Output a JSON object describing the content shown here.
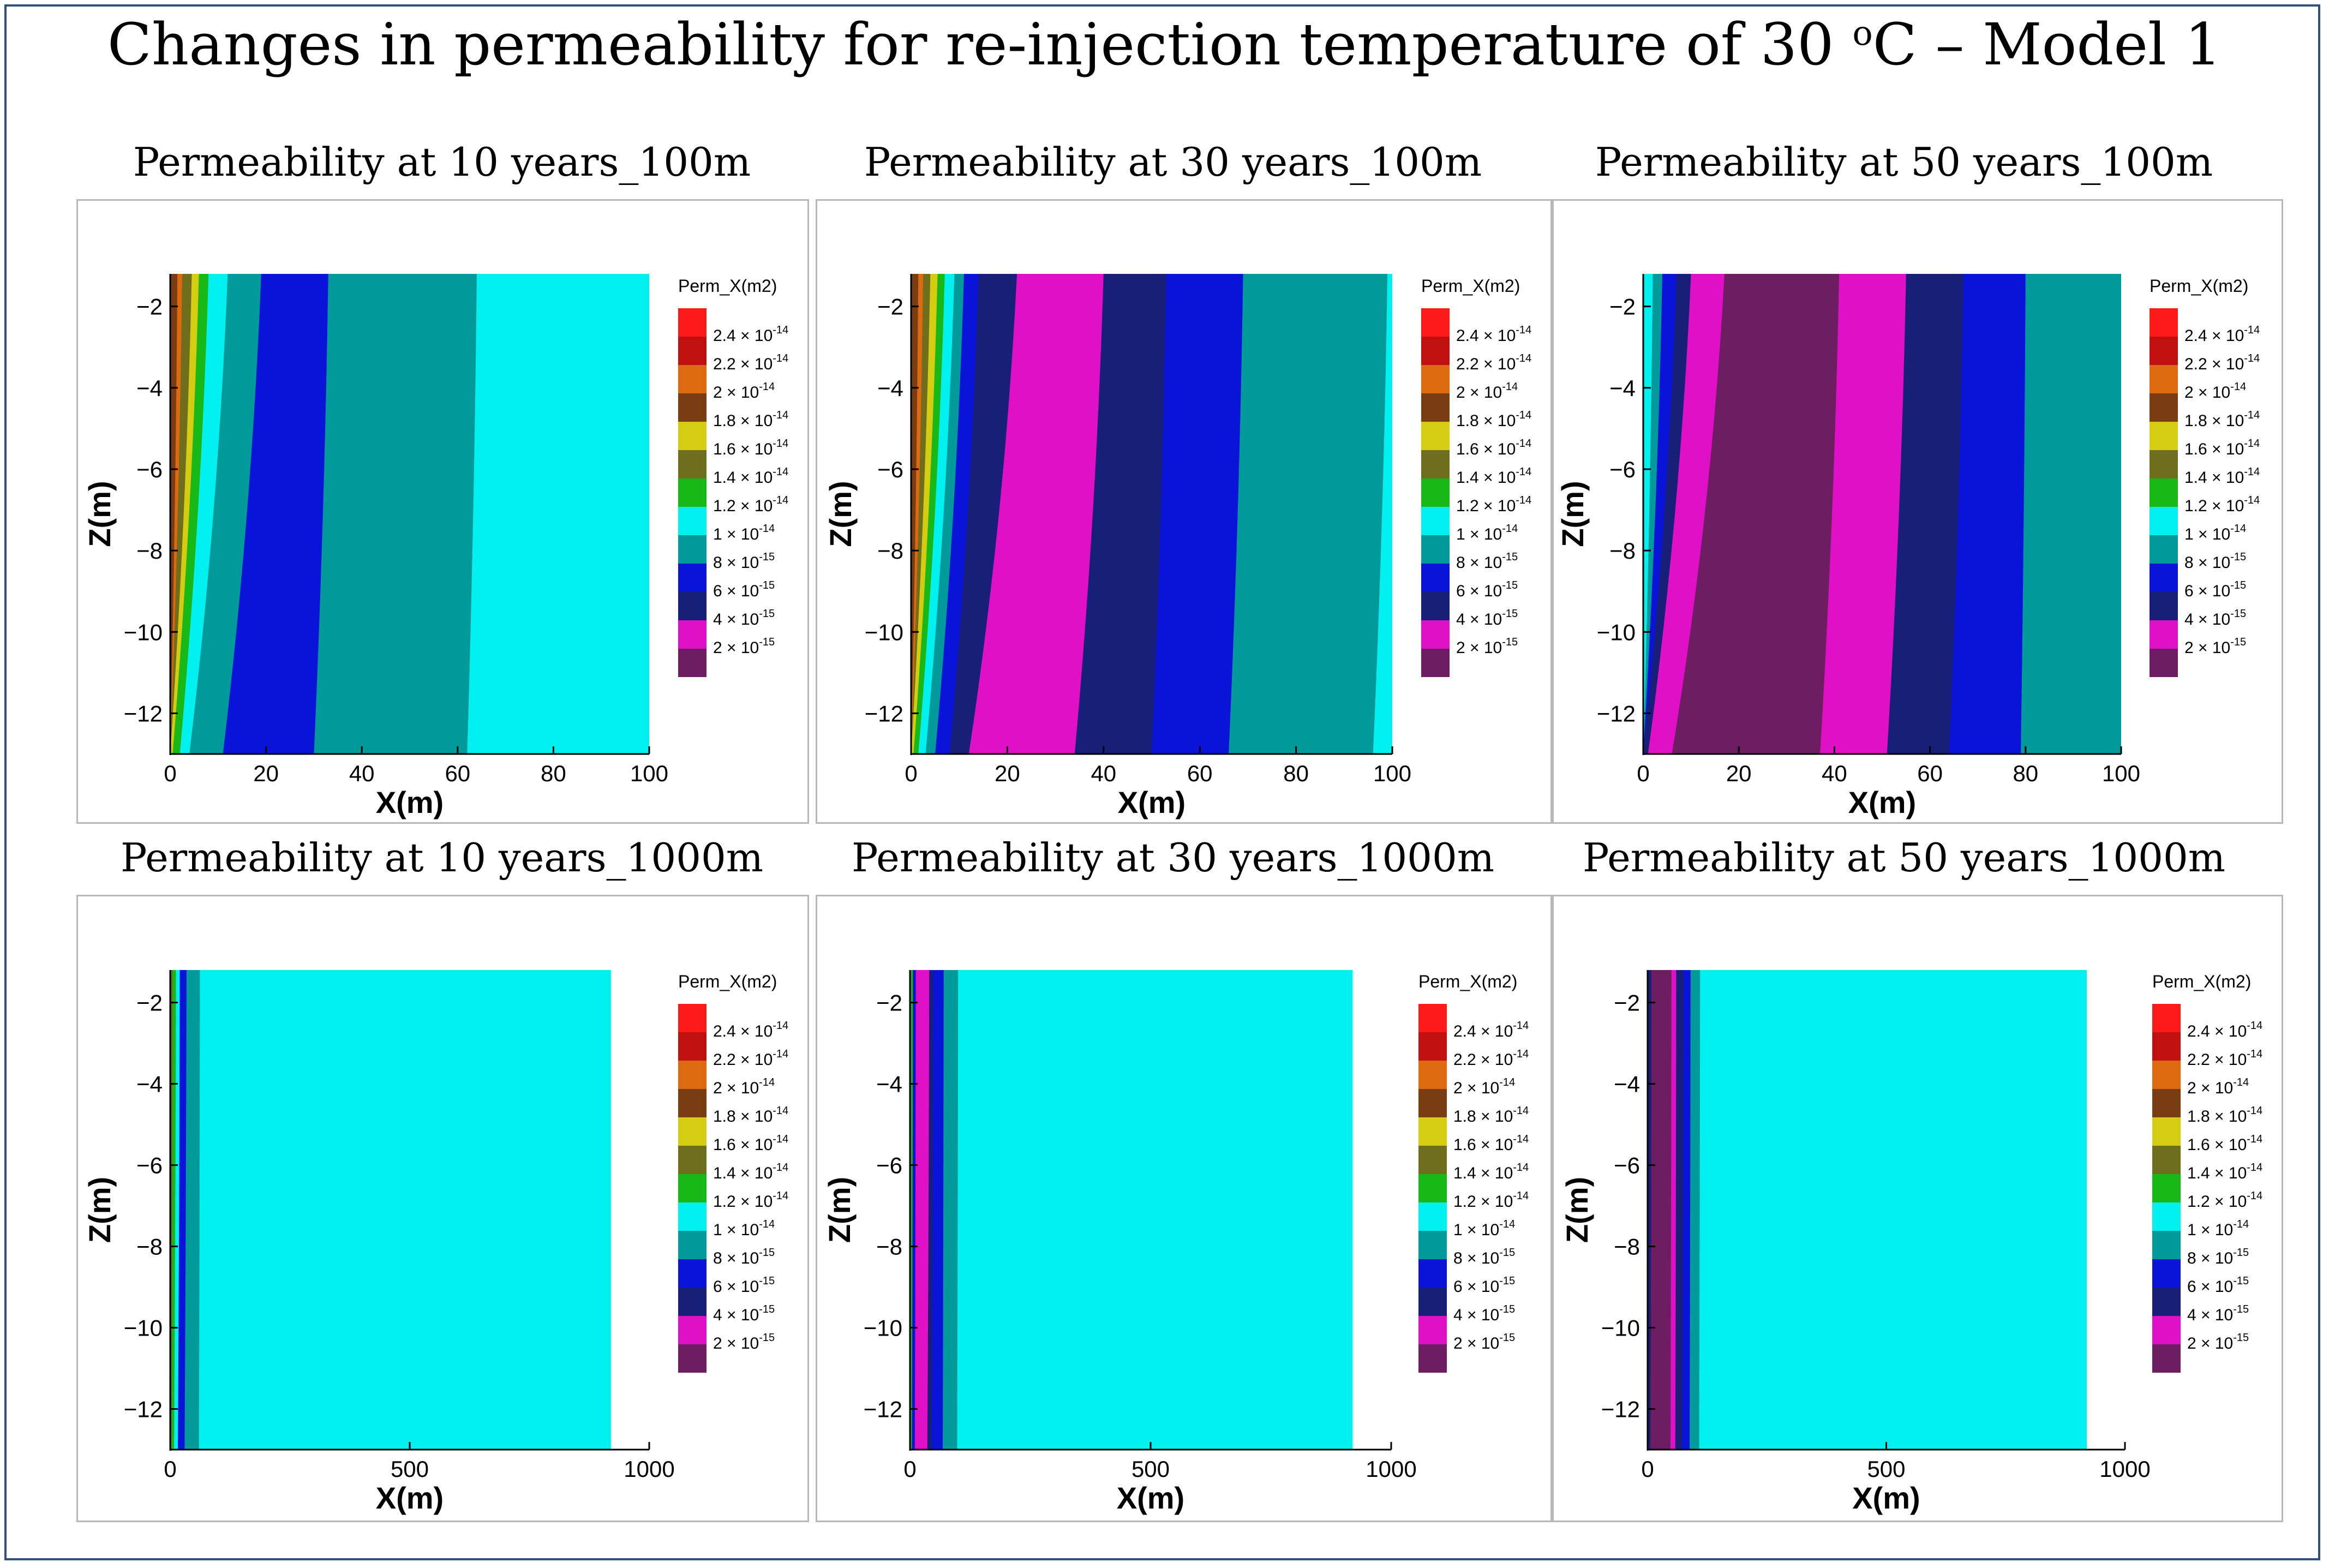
{
  "title": "Changes in permeability for re-injection temperature of 30",
  "title_degree": "o",
  "title_tail": "C – Model 1",
  "legend": {
    "title": "Perm_X(m2)",
    "levels": [
      {
        "label": "2.4 × 10",
        "exp": "-14",
        "color": "#ff1a1a"
      },
      {
        "label": "2.2 × 10",
        "exp": "-14",
        "color": "#c01010"
      },
      {
        "label": "2 × 10",
        "exp": "-14",
        "color": "#dd6a10"
      },
      {
        "label": "1.8 × 10",
        "exp": "-14",
        "color": "#7a3d12"
      },
      {
        "label": "1.6 × 10",
        "exp": "-14",
        "color": "#d4cc10"
      },
      {
        "label": "1.4 × 10",
        "exp": "-14",
        "color": "#6e6e1c"
      },
      {
        "label": "1.2 × 10",
        "exp": "-14",
        "color": "#18b818"
      },
      {
        "label": "1 × 10",
        "exp": "-14",
        "color": "#00f0f0"
      },
      {
        "label": "8 × 10",
        "exp": "-15",
        "color": "#009a9a"
      },
      {
        "label": "6 × 10",
        "exp": "-15",
        "color": "#0a14d8"
      },
      {
        "label": "4 × 10",
        "exp": "-15",
        "color": "#181f78"
      },
      {
        "label": "2 × 10",
        "exp": "-15",
        "color": "#e010c8"
      },
      {
        "label": "",
        "exp": "",
        "color": "#6e1e60"
      }
    ]
  },
  "chart_data": [
    {
      "type": "heatmap",
      "title": "Permeability  at 10 years_100m",
      "xlabel": "X(m)",
      "ylabel": "Z(m)",
      "xlim": [
        0,
        100
      ],
      "ylim": [
        -13,
        -1.2
      ],
      "xticks": [
        "0",
        "20",
        "40",
        "60",
        "80",
        "100"
      ],
      "yticks": [
        "−2",
        "−4",
        "−6",
        "−8",
        "−10",
        "−12"
      ],
      "bands": [
        {
          "color": "#7a3d12",
          "x_top": 1.5,
          "x_bottom": 0
        },
        {
          "color": "#dd6a10",
          "x_top": 2.5,
          "x_bottom": 0
        },
        {
          "color": "#6e6e1c",
          "x_top": 4.5,
          "x_bottom": 0
        },
        {
          "color": "#d4cc10",
          "x_top": 6,
          "x_bottom": 0.5
        },
        {
          "color": "#18b818",
          "x_top": 8,
          "x_bottom": 2
        },
        {
          "color": "#00f0f0",
          "x_top": 12,
          "x_bottom": 4
        },
        {
          "color": "#009a9a",
          "x_top": 19,
          "x_bottom": 11
        },
        {
          "color": "#0a14d8",
          "x_top": 33,
          "x_bottom": 30
        },
        {
          "color": "#009a9a",
          "x_top": 64,
          "x_bottom": 62
        },
        {
          "color": "#00f0f0",
          "x_top": 100,
          "x_bottom": 100
        }
      ]
    },
    {
      "type": "heatmap",
      "title": "Permeability  at 30 years_100m",
      "xlabel": "X(m)",
      "ylabel": "Z(m)",
      "xlim": [
        0,
        100
      ],
      "ylim": [
        -13,
        -1.2
      ],
      "xticks": [
        "0",
        "20",
        "40",
        "60",
        "80",
        "100"
      ],
      "yticks": [
        "−2",
        "−4",
        "−6",
        "−8",
        "−10",
        "−12"
      ],
      "bands": [
        {
          "color": "#7a3d12",
          "x_top": 1.5,
          "x_bottom": 0
        },
        {
          "color": "#dd6a10",
          "x_top": 2.5,
          "x_bottom": 0
        },
        {
          "color": "#6e6e1c",
          "x_top": 4,
          "x_bottom": 0
        },
        {
          "color": "#d4cc10",
          "x_top": 5.5,
          "x_bottom": 0.5
        },
        {
          "color": "#18b818",
          "x_top": 7,
          "x_bottom": 1.5
        },
        {
          "color": "#00f0f0",
          "x_top": 9,
          "x_bottom": 3
        },
        {
          "color": "#009a9a",
          "x_top": 11,
          "x_bottom": 5
        },
        {
          "color": "#0a14d8",
          "x_top": 14,
          "x_bottom": 8
        },
        {
          "color": "#181f78",
          "x_top": 22,
          "x_bottom": 12
        },
        {
          "color": "#e010c8",
          "x_top": 40,
          "x_bottom": 34
        },
        {
          "color": "#181f78",
          "x_top": 53,
          "x_bottom": 50
        },
        {
          "color": "#0a14d8",
          "x_top": 69,
          "x_bottom": 66
        },
        {
          "color": "#009a9a",
          "x_top": 99,
          "x_bottom": 96
        },
        {
          "color": "#00f0f0",
          "x_top": 100,
          "x_bottom": 100
        }
      ]
    },
    {
      "type": "heatmap",
      "title": "Permeability  at 50 years_100m",
      "xlabel": "X(m)",
      "ylabel": "Z(m)",
      "xlim": [
        0,
        100
      ],
      "ylim": [
        -13,
        -1.2
      ],
      "xticks": [
        "0",
        "20",
        "40",
        "60",
        "80",
        "100"
      ],
      "yticks": [
        "−2",
        "−4",
        "−6",
        "−8",
        "−10",
        "−12"
      ],
      "bands": [
        {
          "color": "#00f0f0",
          "x_top": 2,
          "x_bottom": 0
        },
        {
          "color": "#009a9a",
          "x_top": 4,
          "x_bottom": 0
        },
        {
          "color": "#0a14d8",
          "x_top": 7,
          "x_bottom": 0
        },
        {
          "color": "#181f78",
          "x_top": 10,
          "x_bottom": 1
        },
        {
          "color": "#e010c8",
          "x_top": 17,
          "x_bottom": 6
        },
        {
          "color": "#6e1e60",
          "x_top": 41,
          "x_bottom": 37
        },
        {
          "color": "#e010c8",
          "x_top": 55,
          "x_bottom": 51
        },
        {
          "color": "#181f78",
          "x_top": 67,
          "x_bottom": 64
        },
        {
          "color": "#0a14d8",
          "x_top": 80,
          "x_bottom": 79
        },
        {
          "color": "#009a9a",
          "x_top": 100,
          "x_bottom": 100
        }
      ]
    },
    {
      "type": "heatmap",
      "title": "Permeability  at 10 years_1000m",
      "xlabel": "X(m)",
      "ylabel": "Z(m)",
      "xlim": [
        0,
        1000
      ],
      "ylim": [
        -13,
        -1.2
      ],
      "data_xmax": 920,
      "xticks": [
        "0",
        "500",
        "1000"
      ],
      "yticks": [
        "−2",
        "−4",
        "−6",
        "−8",
        "−10",
        "−12"
      ],
      "bands": [
        {
          "color": "#6e6e1c",
          "x_top": 5,
          "x_bottom": 3
        },
        {
          "color": "#18b818",
          "x_top": 12,
          "x_bottom": 8
        },
        {
          "color": "#00f0f0",
          "x_top": 20,
          "x_bottom": 16
        },
        {
          "color": "#0a14d8",
          "x_top": 34,
          "x_bottom": 30
        },
        {
          "color": "#009a9a",
          "x_top": 62,
          "x_bottom": 60
        },
        {
          "color": "#00f0f0",
          "x_top": 920,
          "x_bottom": 920
        }
      ]
    },
    {
      "type": "heatmap",
      "title": "Permeability  at 30 years_1000m",
      "xlabel": "X(m)",
      "ylabel": "Z(m)",
      "xlim": [
        0,
        1000
      ],
      "ylim": [
        -13,
        -1.2
      ],
      "data_xmax": 920,
      "xticks": [
        "0",
        "500",
        "1000"
      ],
      "yticks": [
        "−2",
        "−4",
        "−6",
        "−8",
        "−10",
        "−12"
      ],
      "bands": [
        {
          "color": "#18b818",
          "x_top": 6,
          "x_bottom": 4
        },
        {
          "color": "#0a14d8",
          "x_top": 12,
          "x_bottom": 10
        },
        {
          "color": "#e010c8",
          "x_top": 40,
          "x_bottom": 36
        },
        {
          "color": "#181f78",
          "x_top": 48,
          "x_bottom": 45
        },
        {
          "color": "#0a14d8",
          "x_top": 70,
          "x_bottom": 68
        },
        {
          "color": "#009a9a",
          "x_top": 100,
          "x_bottom": 98
        },
        {
          "color": "#00f0f0",
          "x_top": 920,
          "x_bottom": 920
        }
      ]
    },
    {
      "type": "heatmap",
      "title": "Permeability  at 50 years_1000m",
      "xlabel": "X(m)",
      "ylabel": "Z(m)",
      "xlim": [
        0,
        1000
      ],
      "ylim": [
        -13,
        -1.2
      ],
      "data_xmax": 920,
      "xticks": [
        "0",
        "500",
        "1000"
      ],
      "yticks": [
        "−2",
        "−4",
        "−6",
        "−8",
        "−10",
        "−12"
      ],
      "bands": [
        {
          "color": "#181f78",
          "x_top": 8,
          "x_bottom": 6
        },
        {
          "color": "#6e1e60",
          "x_top": 50,
          "x_bottom": 48
        },
        {
          "color": "#e010c8",
          "x_top": 60,
          "x_bottom": 58
        },
        {
          "color": "#181f78",
          "x_top": 75,
          "x_bottom": 72
        },
        {
          "color": "#0a14d8",
          "x_top": 90,
          "x_bottom": 88
        },
        {
          "color": "#009a9a",
          "x_top": 110,
          "x_bottom": 108
        },
        {
          "color": "#00f0f0",
          "x_top": 920,
          "x_bottom": 920
        }
      ]
    }
  ]
}
